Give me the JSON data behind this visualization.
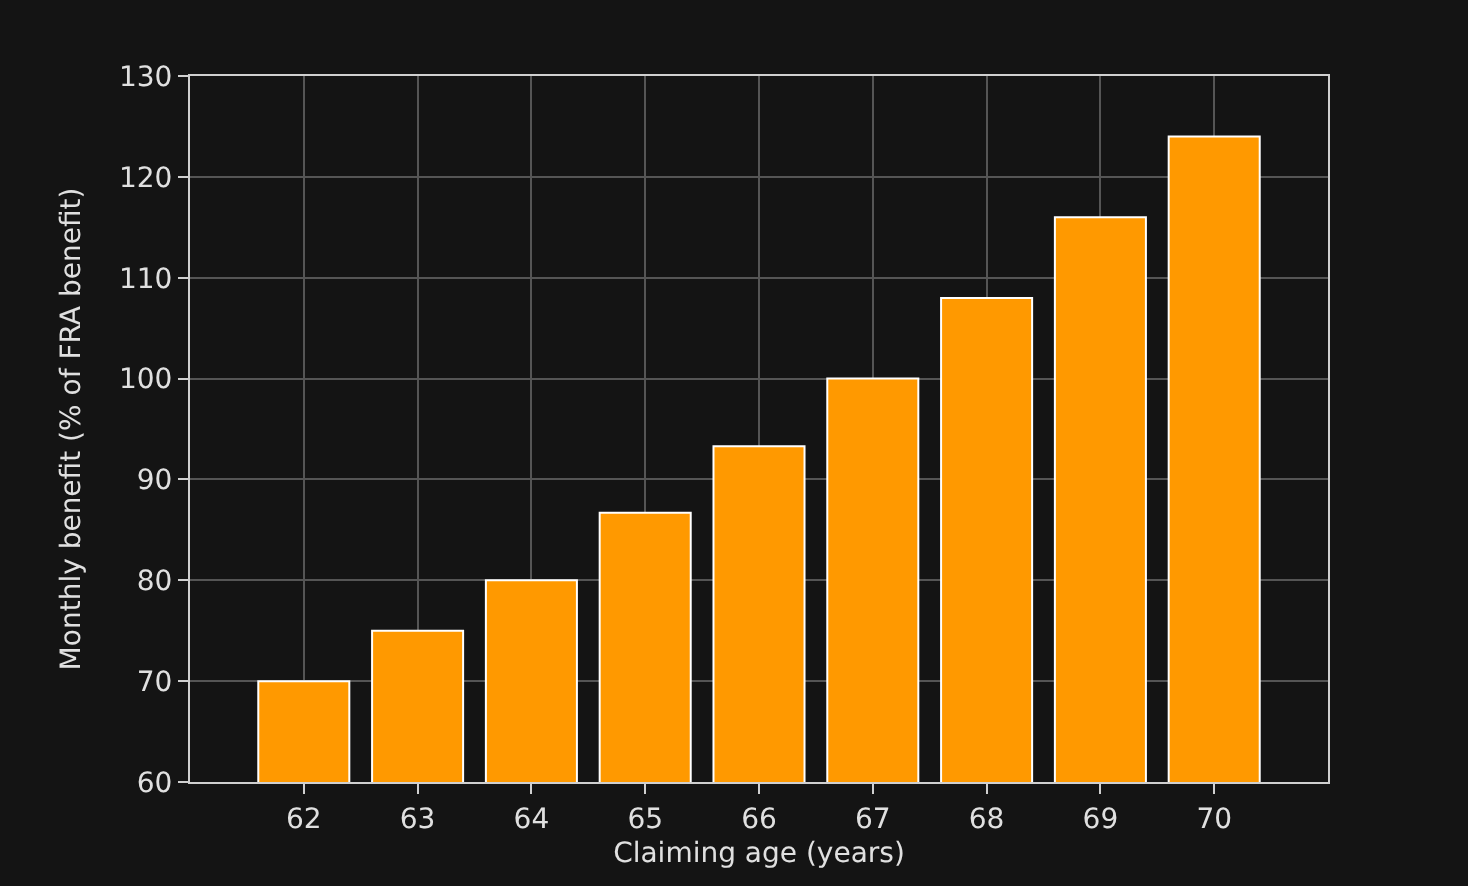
{
  "chart_data": {
    "type": "bar",
    "xlabel": "Claiming age (years)",
    "ylabel": "Monthly benefit (% of FRA benefit)",
    "x": [
      62,
      63,
      64,
      65,
      66,
      67,
      68,
      69,
      70
    ],
    "values": [
      70,
      75,
      80,
      86.7,
      93.3,
      100,
      108,
      116,
      124
    ],
    "color": "#ff9900",
    "xlim": [
      61,
      71
    ],
    "xticks": [
      62,
      63,
      64,
      65,
      66,
      67,
      68,
      69,
      70
    ],
    "ylim": [
      60,
      130
    ],
    "yticks": [
      60,
      70,
      80,
      90,
      100,
      110,
      120,
      130
    ],
    "grid": true
  }
}
